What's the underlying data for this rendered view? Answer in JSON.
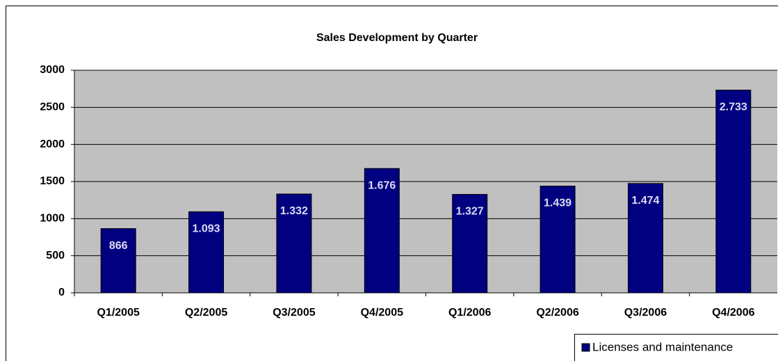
{
  "chart_data": {
    "type": "bar",
    "title": "Sales Development by Quarter",
    "categories": [
      "Q1/2005",
      "Q2/2005",
      "Q3/2005",
      "Q4/2005",
      "Q1/2006",
      "Q2/2006",
      "Q3/2006",
      "Q4/2006"
    ],
    "series": [
      {
        "name": "Licenses and maintenance",
        "color": "#000080",
        "values": [
          866,
          1093,
          1332,
          1676,
          1327,
          1439,
          1474,
          2733
        ],
        "value_labels": [
          "866",
          "1.093",
          "1.332",
          "1.676",
          "1.327",
          "1.439",
          "1.474",
          "2.733"
        ]
      }
    ],
    "ylim": [
      0,
      3000
    ],
    "yticks": [
      0,
      500,
      1000,
      1500,
      2000,
      2500,
      3000
    ],
    "grid": true,
    "legend": "bottom-right"
  }
}
